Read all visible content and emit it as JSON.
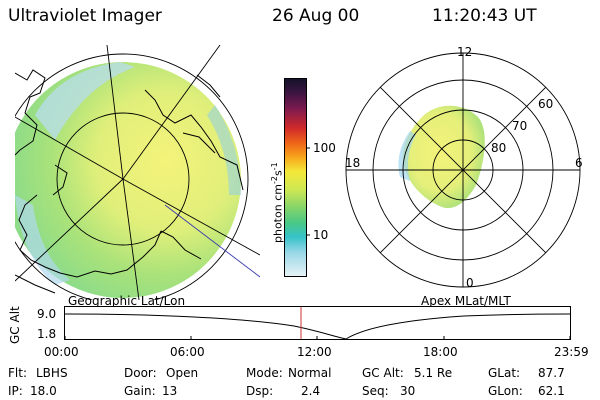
{
  "header": {
    "title": "Ultraviolet Imager",
    "date": "26 Aug 00",
    "time": "11:20:43 UT"
  },
  "colorbar": {
    "label": "photon cm",
    "label_sup1": "-2",
    "label_mid": "s",
    "label_sup2": "-1",
    "ticks": [
      "100",
      "10"
    ]
  },
  "left_map": {
    "caption": "Geographic Lat/Lon"
  },
  "right_map": {
    "caption": "Apex MLat/MLT",
    "mlt_labels": [
      "12",
      "18",
      "6",
      "0"
    ],
    "lat_labels": [
      "60",
      "70",
      "80"
    ]
  },
  "altitude_plot": {
    "ylabel": "GC Alt",
    "yticks": [
      "9.0",
      "1.8"
    ],
    "time_ticks": [
      "00:00",
      "06:00",
      "12:00",
      "18:00",
      "23:59"
    ],
    "marker_color": "#cc3333"
  },
  "status": {
    "row1": [
      {
        "label": "Flt:",
        "value": "LBHS"
      },
      {
        "label": "Door:",
        "value": "Open"
      },
      {
        "label": "Mode:",
        "value": "Normal"
      },
      {
        "label": "GC Alt:",
        "value": "5.1 Re"
      },
      {
        "label": "GLat:",
        "value": "87.7"
      }
    ],
    "row2": [
      {
        "label": "IP:",
        "value": "18.0"
      },
      {
        "label": "Gain:",
        "value": "13"
      },
      {
        "label": "Dsp:",
        "value": "2.4"
      },
      {
        "label": "Seq:",
        "value": "30"
      },
      {
        "label": "GLon:",
        "value": "62.1"
      }
    ]
  }
}
